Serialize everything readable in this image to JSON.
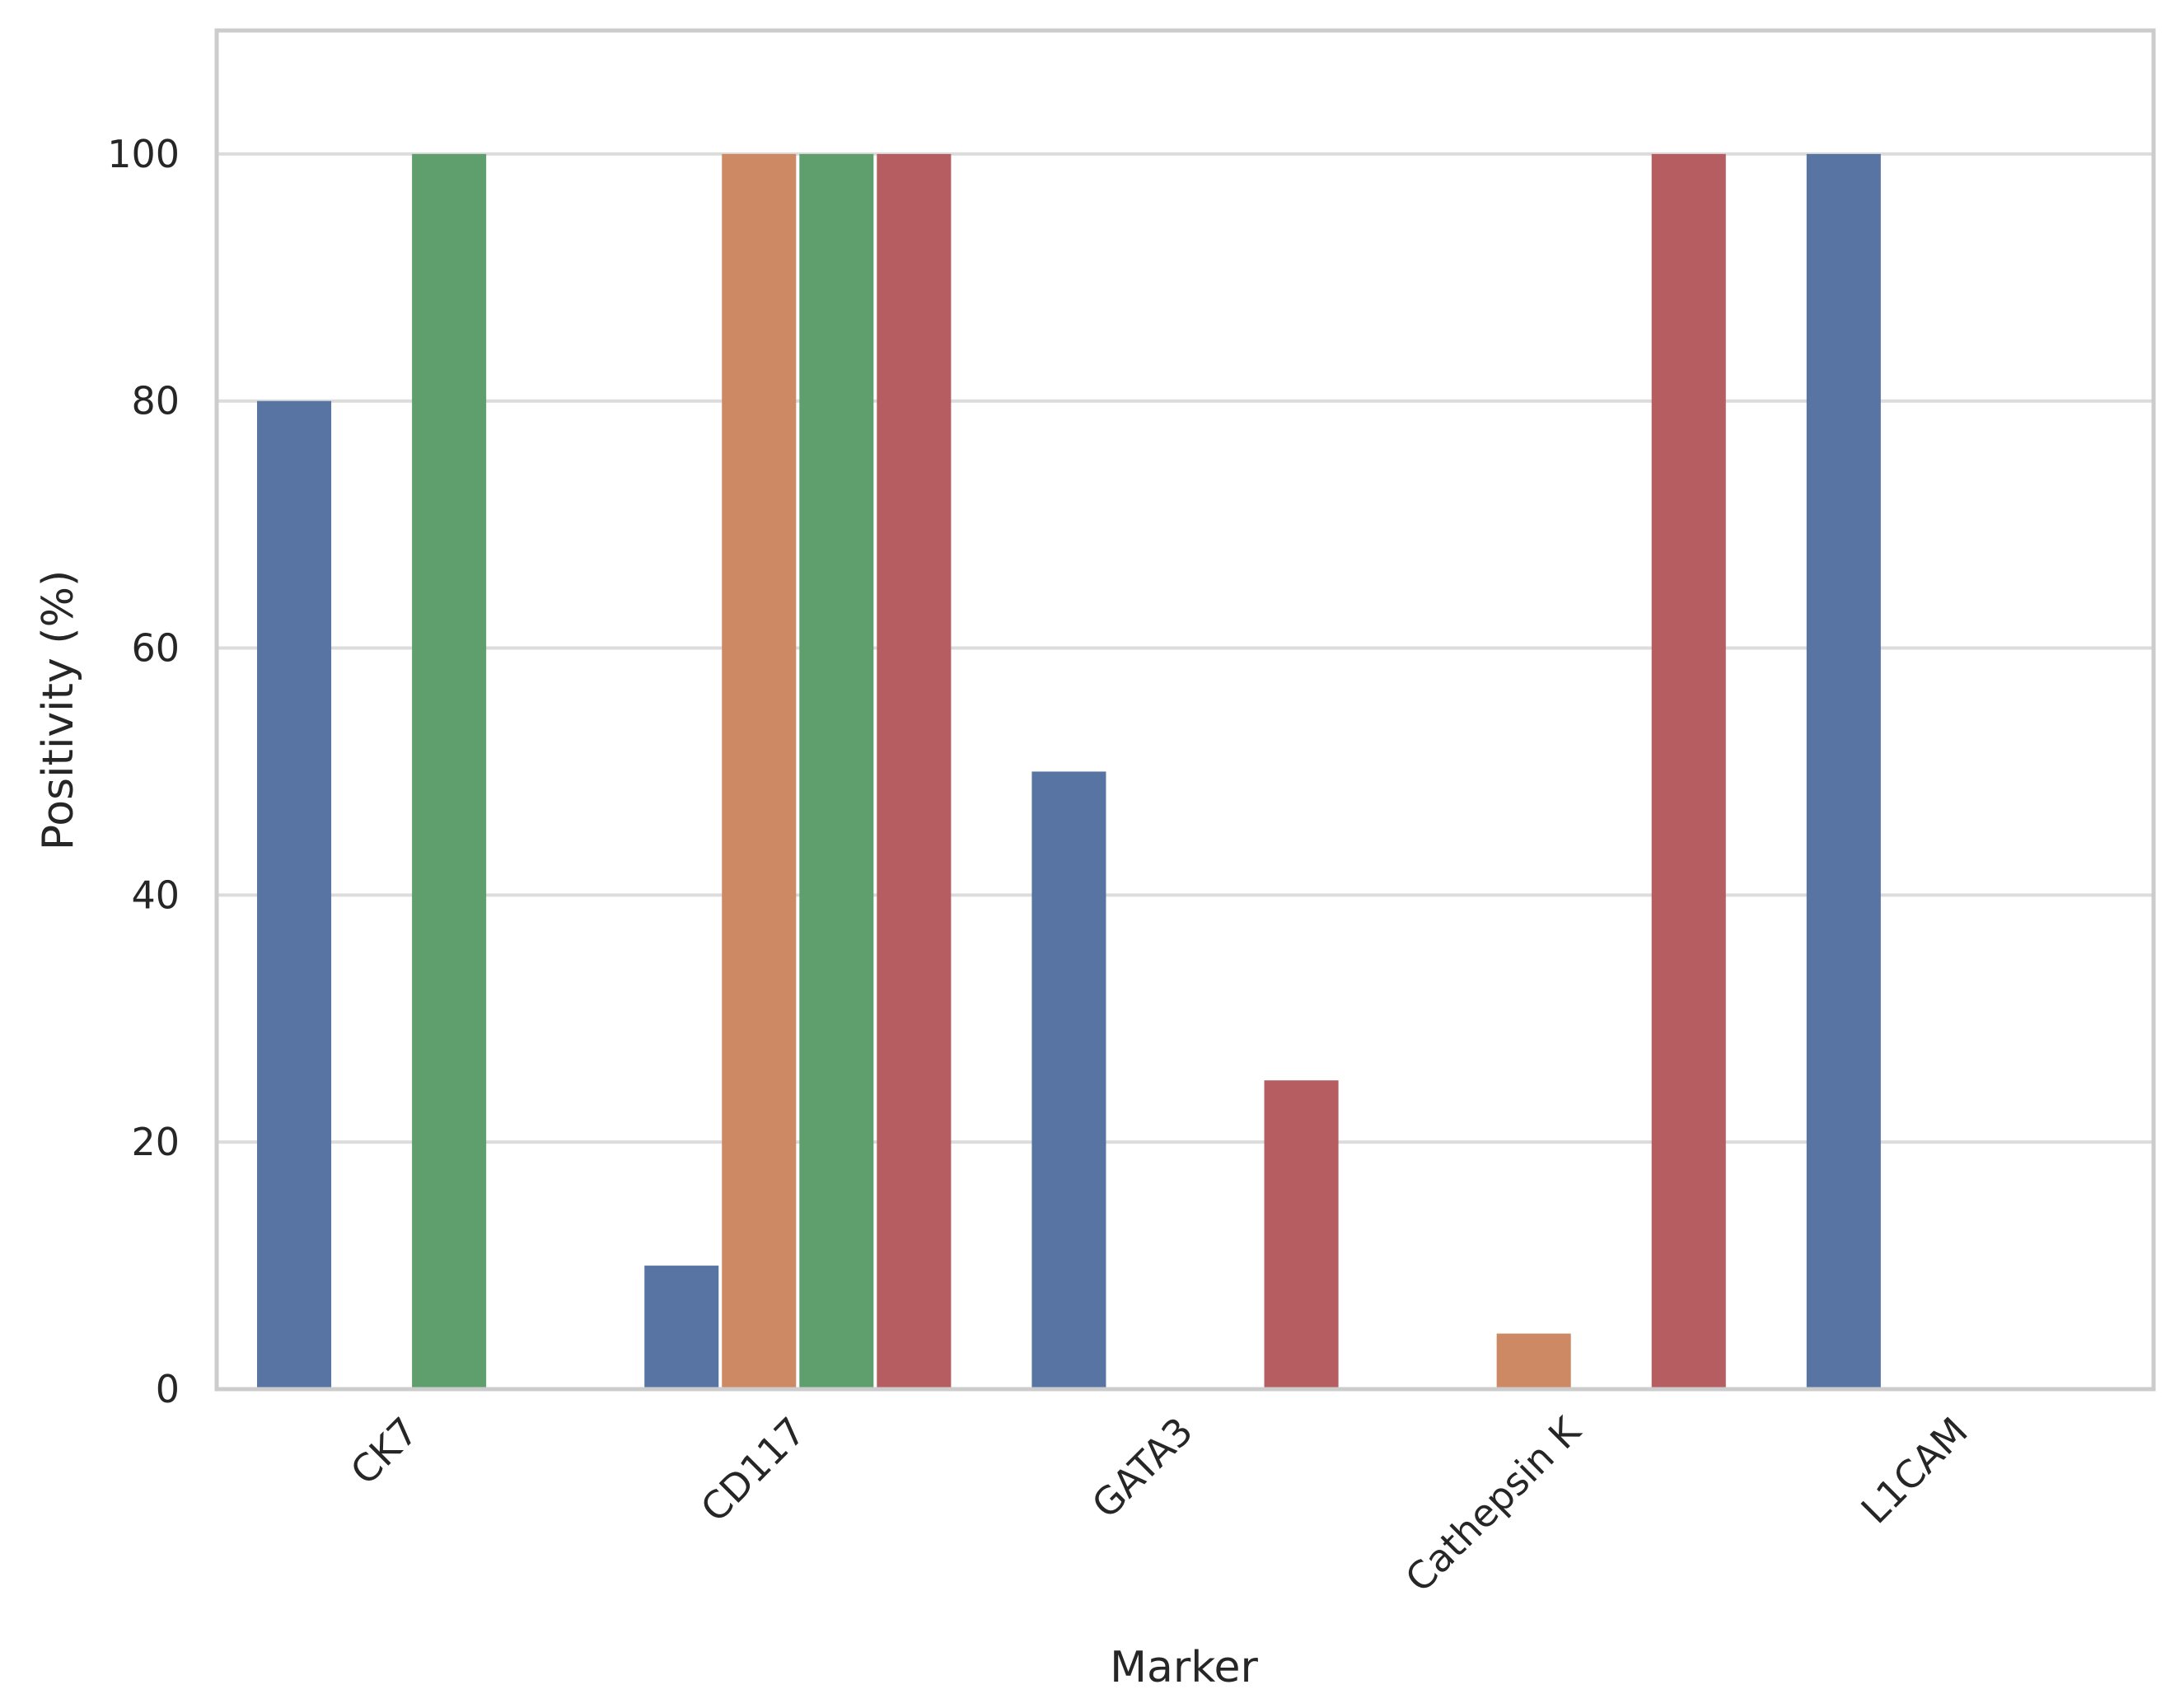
{
  "chart_data": {
    "type": "bar",
    "title": "",
    "xlabel": "Marker",
    "ylabel": "Positivity (%)",
    "categories": [
      "CK7",
      "CD117",
      "GATA3",
      "Cathepsin K",
      "L1CAM"
    ],
    "series": [
      {
        "values": [
          80,
          10,
          50,
          0,
          100
        ],
        "color": "#5874a3"
      },
      {
        "values": [
          0,
          100,
          0,
          4.5,
          0
        ],
        "color": "#cc8963"
      },
      {
        "values": [
          100,
          100,
          0,
          0,
          0
        ],
        "color": "#5f9f6e"
      },
      {
        "values": [
          0,
          100,
          25,
          100,
          0
        ],
        "color": "#b55d60"
      }
    ],
    "ylim": [
      0,
      110
    ],
    "yticks": [
      0,
      20,
      40,
      60,
      80,
      100
    ],
    "grid": true,
    "legend": "none"
  }
}
